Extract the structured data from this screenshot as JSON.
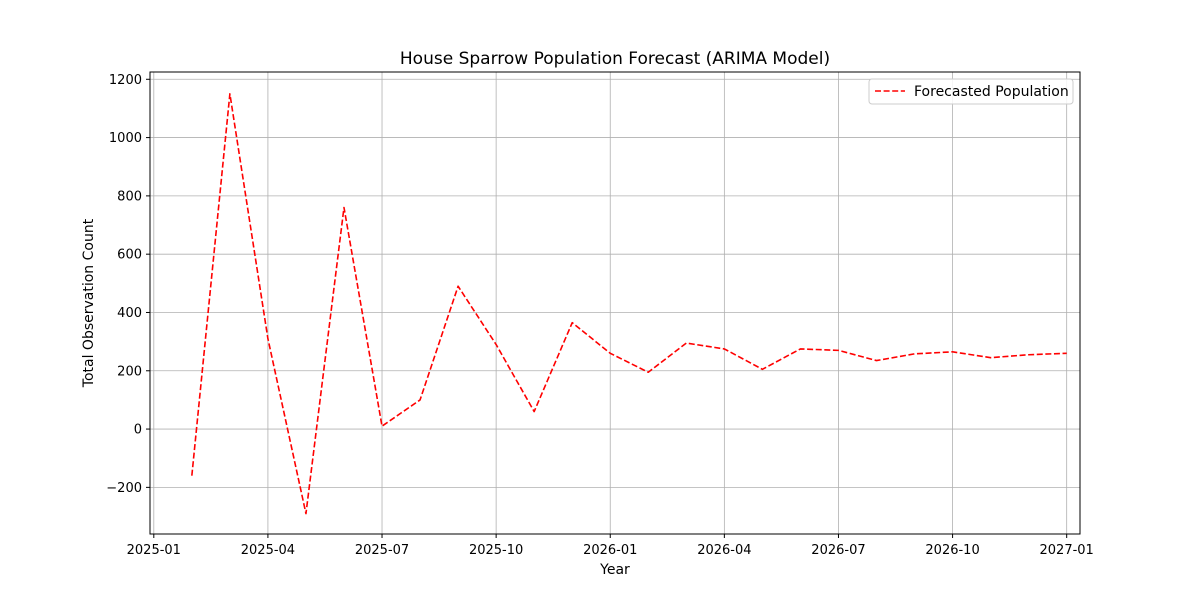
{
  "chart_data": {
    "type": "line",
    "title": "House Sparrow Population Forecast (ARIMA Model)",
    "xlabel": "Year",
    "ylabel": "Total Observation Count",
    "x_tick_labels": [
      "2025-01",
      "2025-04",
      "2025-07",
      "2025-10",
      "2026-01",
      "2026-04",
      "2026-07",
      "2026-10",
      "2027-01"
    ],
    "x_tick_months": [
      0,
      3,
      6,
      9,
      12,
      15,
      18,
      21,
      24
    ],
    "xlim_months": [
      -0.1,
      24.35
    ],
    "y_ticks": [
      -200,
      0,
      200,
      400,
      600,
      800,
      1000,
      1200
    ],
    "ylim": [
      -360,
      1225
    ],
    "grid": true,
    "legend_position": "upper right",
    "series": [
      {
        "name": "Forecasted Population",
        "color": "#ff0000",
        "style": "dashed",
        "x": [
          "2025-02",
          "2025-03",
          "2025-04",
          "2025-05",
          "2025-06",
          "2025-07",
          "2025-08",
          "2025-09",
          "2025-10",
          "2025-11",
          "2025-12",
          "2026-01",
          "2026-02",
          "2026-03",
          "2026-04",
          "2026-05",
          "2026-06",
          "2026-07",
          "2026-08",
          "2026-09",
          "2026-10",
          "2026-11",
          "2026-12",
          "2027-01"
        ],
        "x_months": [
          1,
          2,
          3,
          4,
          5,
          6,
          7,
          8,
          9,
          10,
          11,
          12,
          13,
          14,
          15,
          16,
          17,
          18,
          19,
          20,
          21,
          22,
          23,
          24
        ],
        "values": [
          -160,
          1150,
          310,
          -290,
          760,
          10,
          100,
          490,
          290,
          60,
          365,
          260,
          195,
          295,
          275,
          205,
          275,
          270,
          235,
          258,
          265,
          245,
          255,
          260
        ]
      }
    ]
  }
}
